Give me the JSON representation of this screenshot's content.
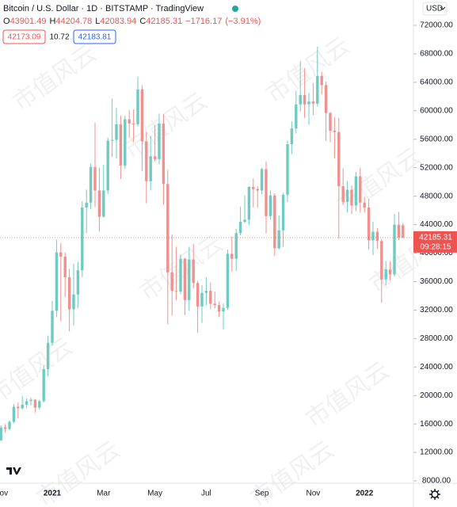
{
  "chart_data": {
    "type": "candlestick",
    "title": "Bitcoin / U.S. Dollar · 1D · BITSTAMP · TradingView",
    "currency": "USD",
    "ohlc_prefixes": [
      "O",
      "H",
      "L",
      "C"
    ],
    "change": "−1716.17",
    "change_pct": "(−3.91%)",
    "bid": "42173.09",
    "spread": "10.72",
    "ask": "42183.81",
    "countdown": "09:28:15",
    "watermark": "市值风云",
    "up_color": "#6fcbc0",
    "down_color": "#f0918f",
    "categories": [
      "Nov",
      null,
      null,
      null,
      null,
      null,
      null,
      null,
      null,
      null,
      null,
      null,
      "2021",
      null,
      null,
      null,
      null,
      null,
      null,
      null,
      null,
      null,
      null,
      null,
      "Mar",
      null,
      null,
      null,
      null,
      null,
      null,
      null,
      null,
      null,
      null,
      null,
      "May",
      null,
      null,
      null,
      null,
      null,
      null,
      null,
      null,
      null,
      null,
      null,
      "Jul",
      null,
      null,
      null,
      null,
      null,
      null,
      null,
      null,
      null,
      null,
      null,
      null,
      "Sep",
      null,
      null,
      null,
      null,
      null,
      null,
      null,
      null,
      null,
      null,
      null,
      "Nov",
      null,
      null,
      null,
      null,
      null,
      null,
      null,
      null,
      null,
      null,
      null,
      "2022",
      null,
      null,
      null,
      null,
      null,
      null,
      null,
      null,
      null
    ],
    "open": [
      13700,
      15500,
      15300,
      16300,
      18400,
      18200,
      18700,
      19200,
      19400,
      18300,
      19200,
      23700,
      27400,
      31900,
      40100,
      39500,
      36600,
      32100,
      34200,
      37600,
      46400,
      47100,
      52100,
      48800,
      45100,
      48800,
      55800,
      55900,
      58100,
      52300,
      58800,
      58200,
      58100,
      63000,
      55700,
      50100,
      53600,
      53200,
      58200,
      49700,
      37300,
      34700,
      34600,
      39200,
      33400,
      39100,
      35800,
      32500,
      34400,
      34700,
      32900,
      32700,
      31800,
      32300,
      39900,
      39200,
      42800,
      44400,
      44700,
      49300,
      49000,
      48800,
      51800,
      45200,
      48100,
      40700,
      43200,
      48200,
      55300,
      57500,
      60900,
      62200,
      60900,
      61300,
      61000,
      64900,
      63600,
      59700,
      57200,
      57000,
      49400,
      47200,
      48900,
      46700,
      50800,
      47100,
      46400,
      41800,
      43000,
      41700,
      36300,
      37700,
      37000,
      44000,
      43901.49
    ],
    "high": [
      15800,
      16000,
      16500,
      18800,
      19000,
      19900,
      19600,
      19700,
      19500,
      19400,
      24200,
      28400,
      33300,
      41900,
      41400,
      40100,
      37800,
      38500,
      38800,
      47300,
      48900,
      52600,
      58300,
      52000,
      52400,
      56200,
      61700,
      60400,
      59300,
      59300,
      60100,
      60200,
      64800,
      63600,
      57000,
      56500,
      58000,
      59600,
      59500,
      51700,
      42600,
      40900,
      39800,
      39300,
      40900,
      41300,
      36100,
      35500,
      36600,
      35900,
      34600,
      33200,
      32900,
      40500,
      42300,
      43400,
      46500,
      48100,
      49400,
      50500,
      49400,
      52000,
      52900,
      48800,
      48400,
      45300,
      48500,
      55800,
      58500,
      62800,
      67000,
      66000,
      62500,
      63900,
      69000,
      65500,
      64100,
      59800,
      59100,
      59000,
      51900,
      50100,
      49500,
      51400,
      52000,
      47900,
      47600,
      44400,
      43500,
      42000,
      38900,
      38800,
      45500,
      45800,
      44204.78
    ],
    "low": [
      13600,
      14800,
      15100,
      16100,
      16800,
      18000,
      18200,
      18600,
      17600,
      18000,
      19000,
      22700,
      27000,
      31000,
      30400,
      33800,
      29000,
      29800,
      32300,
      36600,
      42800,
      46200,
      46500,
      43000,
      45000,
      48300,
      53500,
      53300,
      50400,
      51800,
      56300,
      55600,
      57800,
      51500,
      47000,
      48800,
      52900,
      52500,
      46800,
      30000,
      31200,
      33400,
      34200,
      31300,
      31900,
      35000,
      28800,
      30200,
      32700,
      32100,
      32200,
      31000,
      29300,
      32000,
      37400,
      37500,
      42500,
      44200,
      43900,
      46400,
      46400,
      48300,
      42800,
      44700,
      39600,
      40500,
      40900,
      47200,
      53900,
      56800,
      59900,
      59000,
      58000,
      59400,
      60600,
      62300,
      55800,
      55600,
      53300,
      42000,
      46800,
      45700,
      45500,
      45900,
      45700,
      45700,
      40500,
      39700,
      40600,
      33000,
      35500,
      36200,
      36700,
      41800,
      42083.94
    ],
    "close": [
      15500,
      15300,
      16300,
      18400,
      18200,
      18700,
      19200,
      19400,
      18300,
      19200,
      23700,
      27400,
      31900,
      40100,
      39500,
      36600,
      32100,
      34200,
      37600,
      46400,
      47100,
      52100,
      48800,
      45100,
      48800,
      55800,
      55900,
      58100,
      52300,
      58800,
      58200,
      58100,
      63000,
      55700,
      50100,
      53600,
      53200,
      58200,
      49700,
      37300,
      34700,
      34600,
      39200,
      33400,
      39100,
      35800,
      32500,
      34400,
      34700,
      32900,
      32700,
      31800,
      32300,
      39900,
      39200,
      42800,
      44400,
      44700,
      49300,
      49000,
      48800,
      51800,
      45200,
      48100,
      40700,
      43200,
      48200,
      55300,
      57500,
      60900,
      62200,
      60900,
      61300,
      61000,
      64900,
      63600,
      59700,
      57200,
      57000,
      49400,
      47200,
      48900,
      46700,
      50800,
      47100,
      46400,
      41800,
      43000,
      41700,
      36300,
      37700,
      37000,
      44000,
      42200,
      42185.31
    ],
    "ylim": [
      7670,
      75560
    ],
    "yticks": [
      {
        "value": 8000,
        "label": "8000.00"
      },
      {
        "value": 12000,
        "label": "12000.00"
      },
      {
        "value": 16000,
        "label": "16000.00"
      },
      {
        "value": 20000,
        "label": "20000.00"
      },
      {
        "value": 24000,
        "label": "24000.00"
      },
      {
        "value": 28000,
        "label": "28000.00"
      },
      {
        "value": 32000,
        "label": "32000.00"
      },
      {
        "value": 36000,
        "label": "36000.00"
      },
      {
        "value": 40000,
        "label": "40000.00"
      },
      {
        "value": 44000,
        "label": "44000.00"
      },
      {
        "value": 48000,
        "label": "48000.00"
      },
      {
        "value": 52000,
        "label": "52000.00"
      },
      {
        "value": 56000,
        "label": "56000.00"
      },
      {
        "value": 60000,
        "label": "60000.00"
      },
      {
        "value": 64000,
        "label": "64000.00"
      },
      {
        "value": 68000,
        "label": "68000.00"
      },
      {
        "value": 72000,
        "label": "72000.00"
      }
    ]
  }
}
